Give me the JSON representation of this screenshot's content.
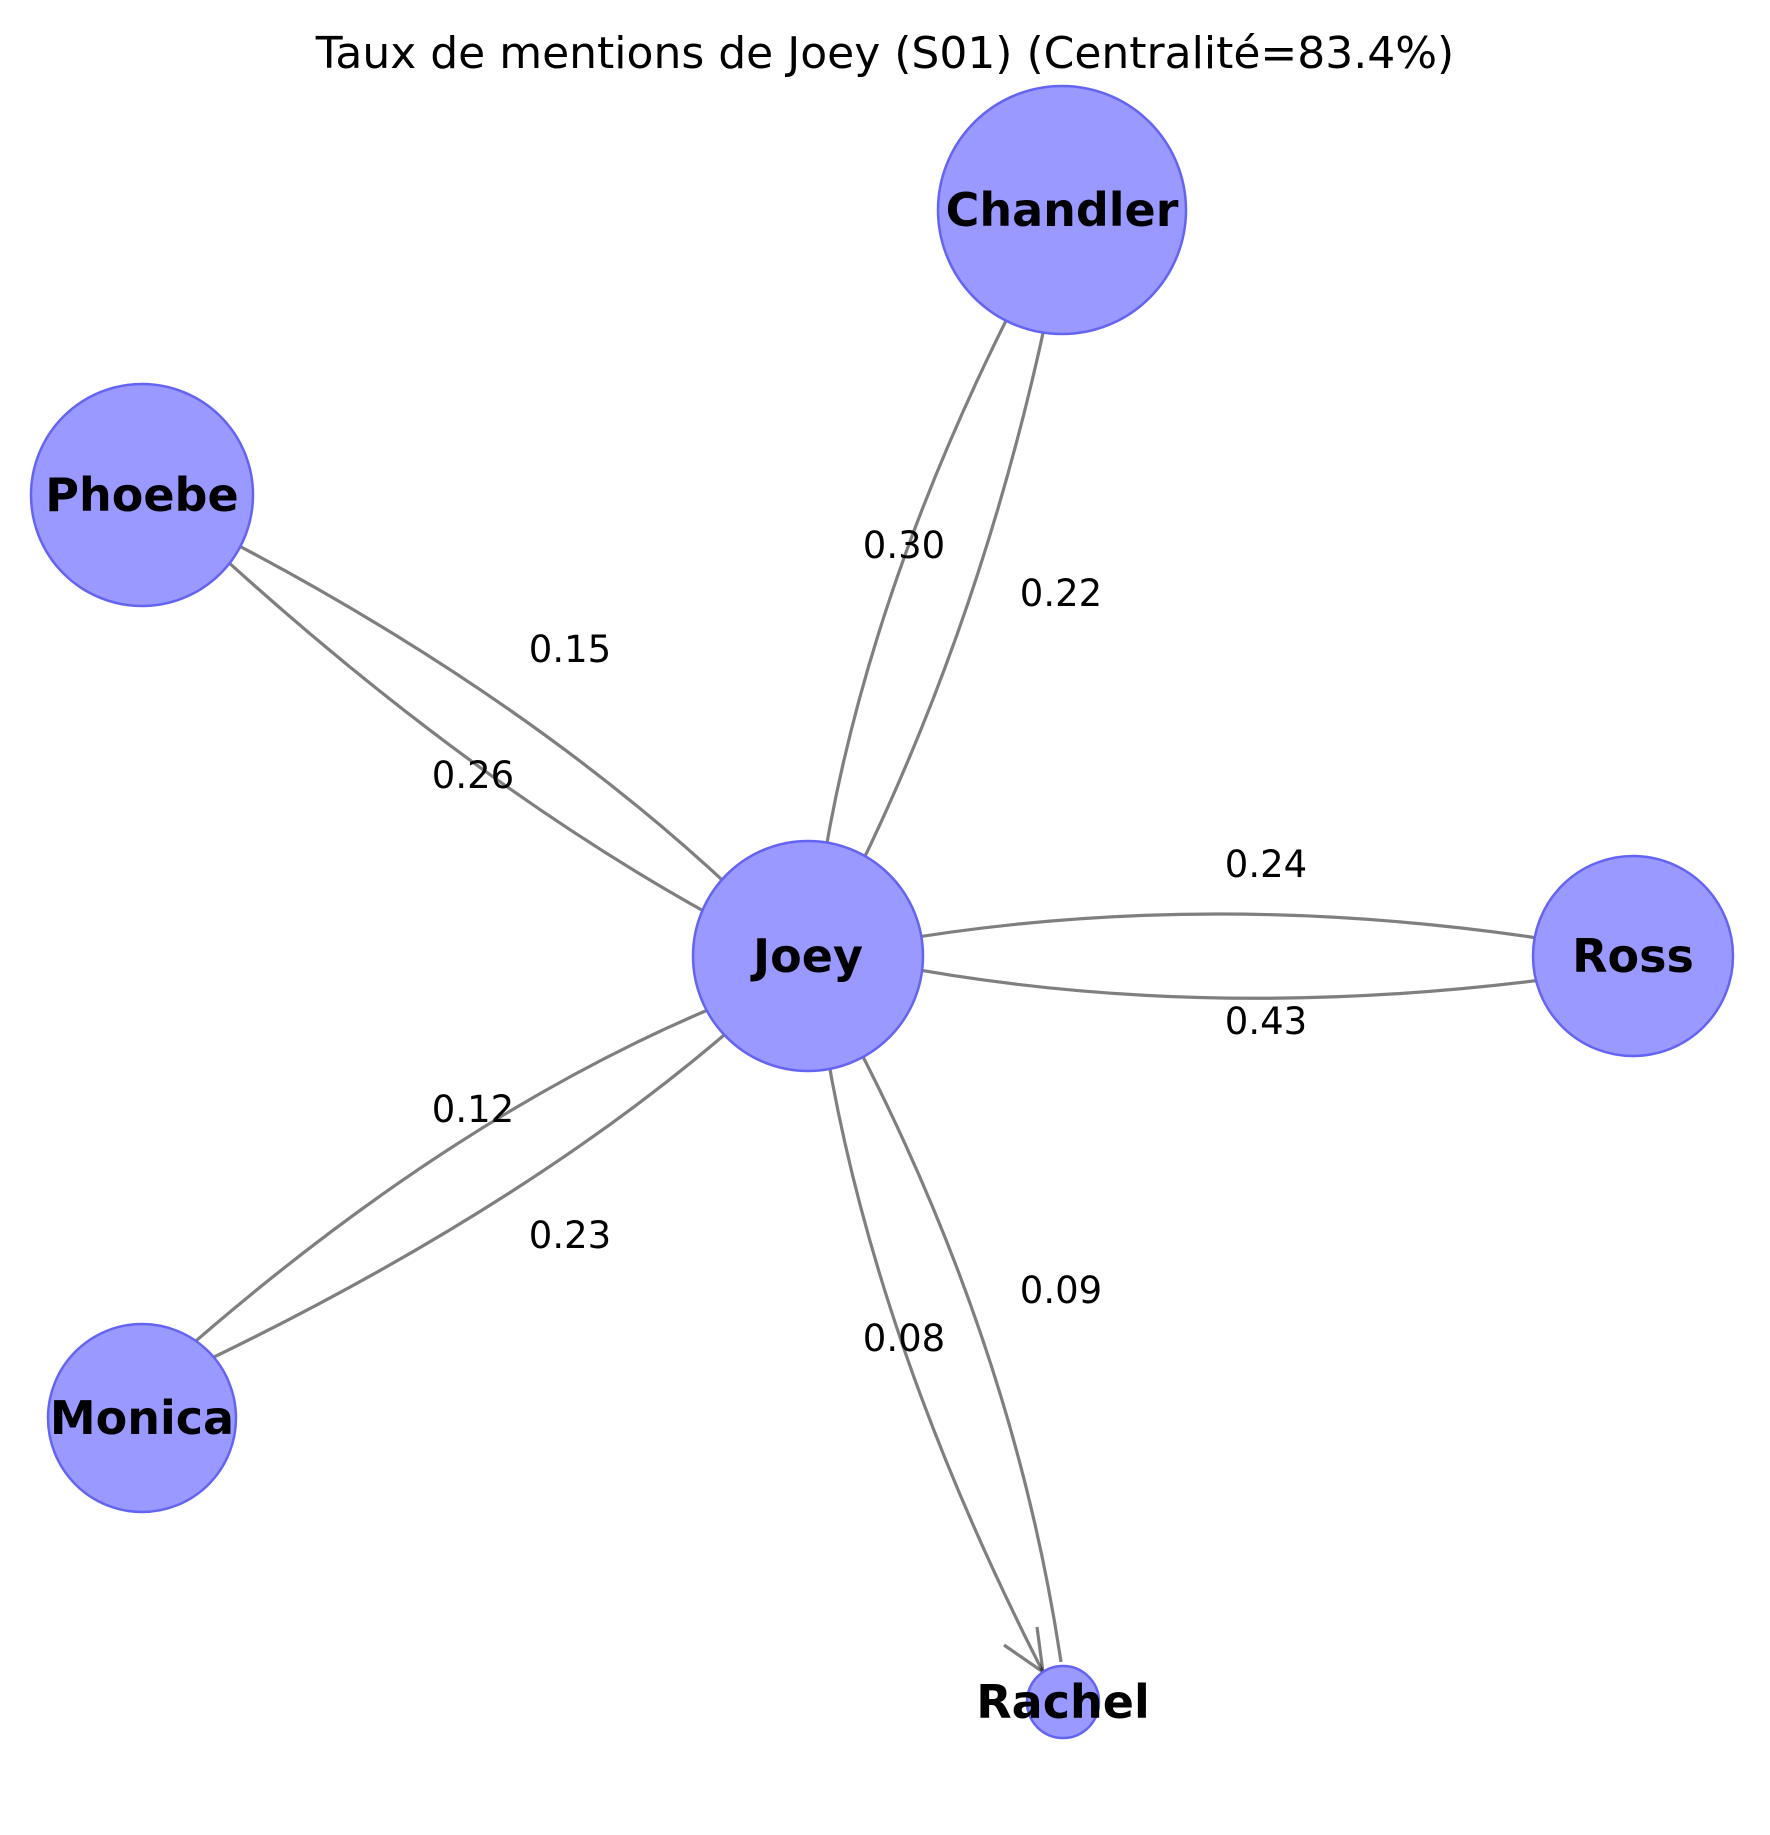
{
  "title": "Taux de mentions de Joey (S01) (Centralité=83.4%)",
  "colors": {
    "node_fill": "#9999ff",
    "node_stroke": "#6464f2",
    "edge": "#808080"
  },
  "nodes": [
    {
      "id": "joey",
      "label": "Joey"
    },
    {
      "id": "chandler",
      "label": "Chandler"
    },
    {
      "id": "phoebe",
      "label": "Phoebe"
    },
    {
      "id": "ross",
      "label": "Ross"
    },
    {
      "id": "monica",
      "label": "Monica"
    },
    {
      "id": "rachel",
      "label": "Rachel"
    }
  ],
  "edges": [
    {
      "id": "joey-chandler",
      "from": "Joey",
      "to": "Chandler",
      "weight": "0.22"
    },
    {
      "id": "chandler-joey",
      "from": "Chandler",
      "to": "Joey",
      "weight": "0.30"
    },
    {
      "id": "joey-phoebe",
      "from": "Joey",
      "to": "Phoebe",
      "weight": "0.26"
    },
    {
      "id": "phoebe-joey",
      "from": "Phoebe",
      "to": "Joey",
      "weight": "0.15"
    },
    {
      "id": "joey-ross",
      "from": "Joey",
      "to": "Ross",
      "weight": "0.43"
    },
    {
      "id": "ross-joey",
      "from": "Ross",
      "to": "Joey",
      "weight": "0.24"
    },
    {
      "id": "joey-monica",
      "from": "Joey",
      "to": "Monica",
      "weight": "0.23"
    },
    {
      "id": "monica-joey",
      "from": "Monica",
      "to": "Joey",
      "weight": "0.12"
    },
    {
      "id": "joey-rachel",
      "from": "Joey",
      "to": "Rachel",
      "weight": "0.08"
    },
    {
      "id": "rachel-joey",
      "from": "Rachel",
      "to": "Joey",
      "weight": "0.09"
    }
  ]
}
